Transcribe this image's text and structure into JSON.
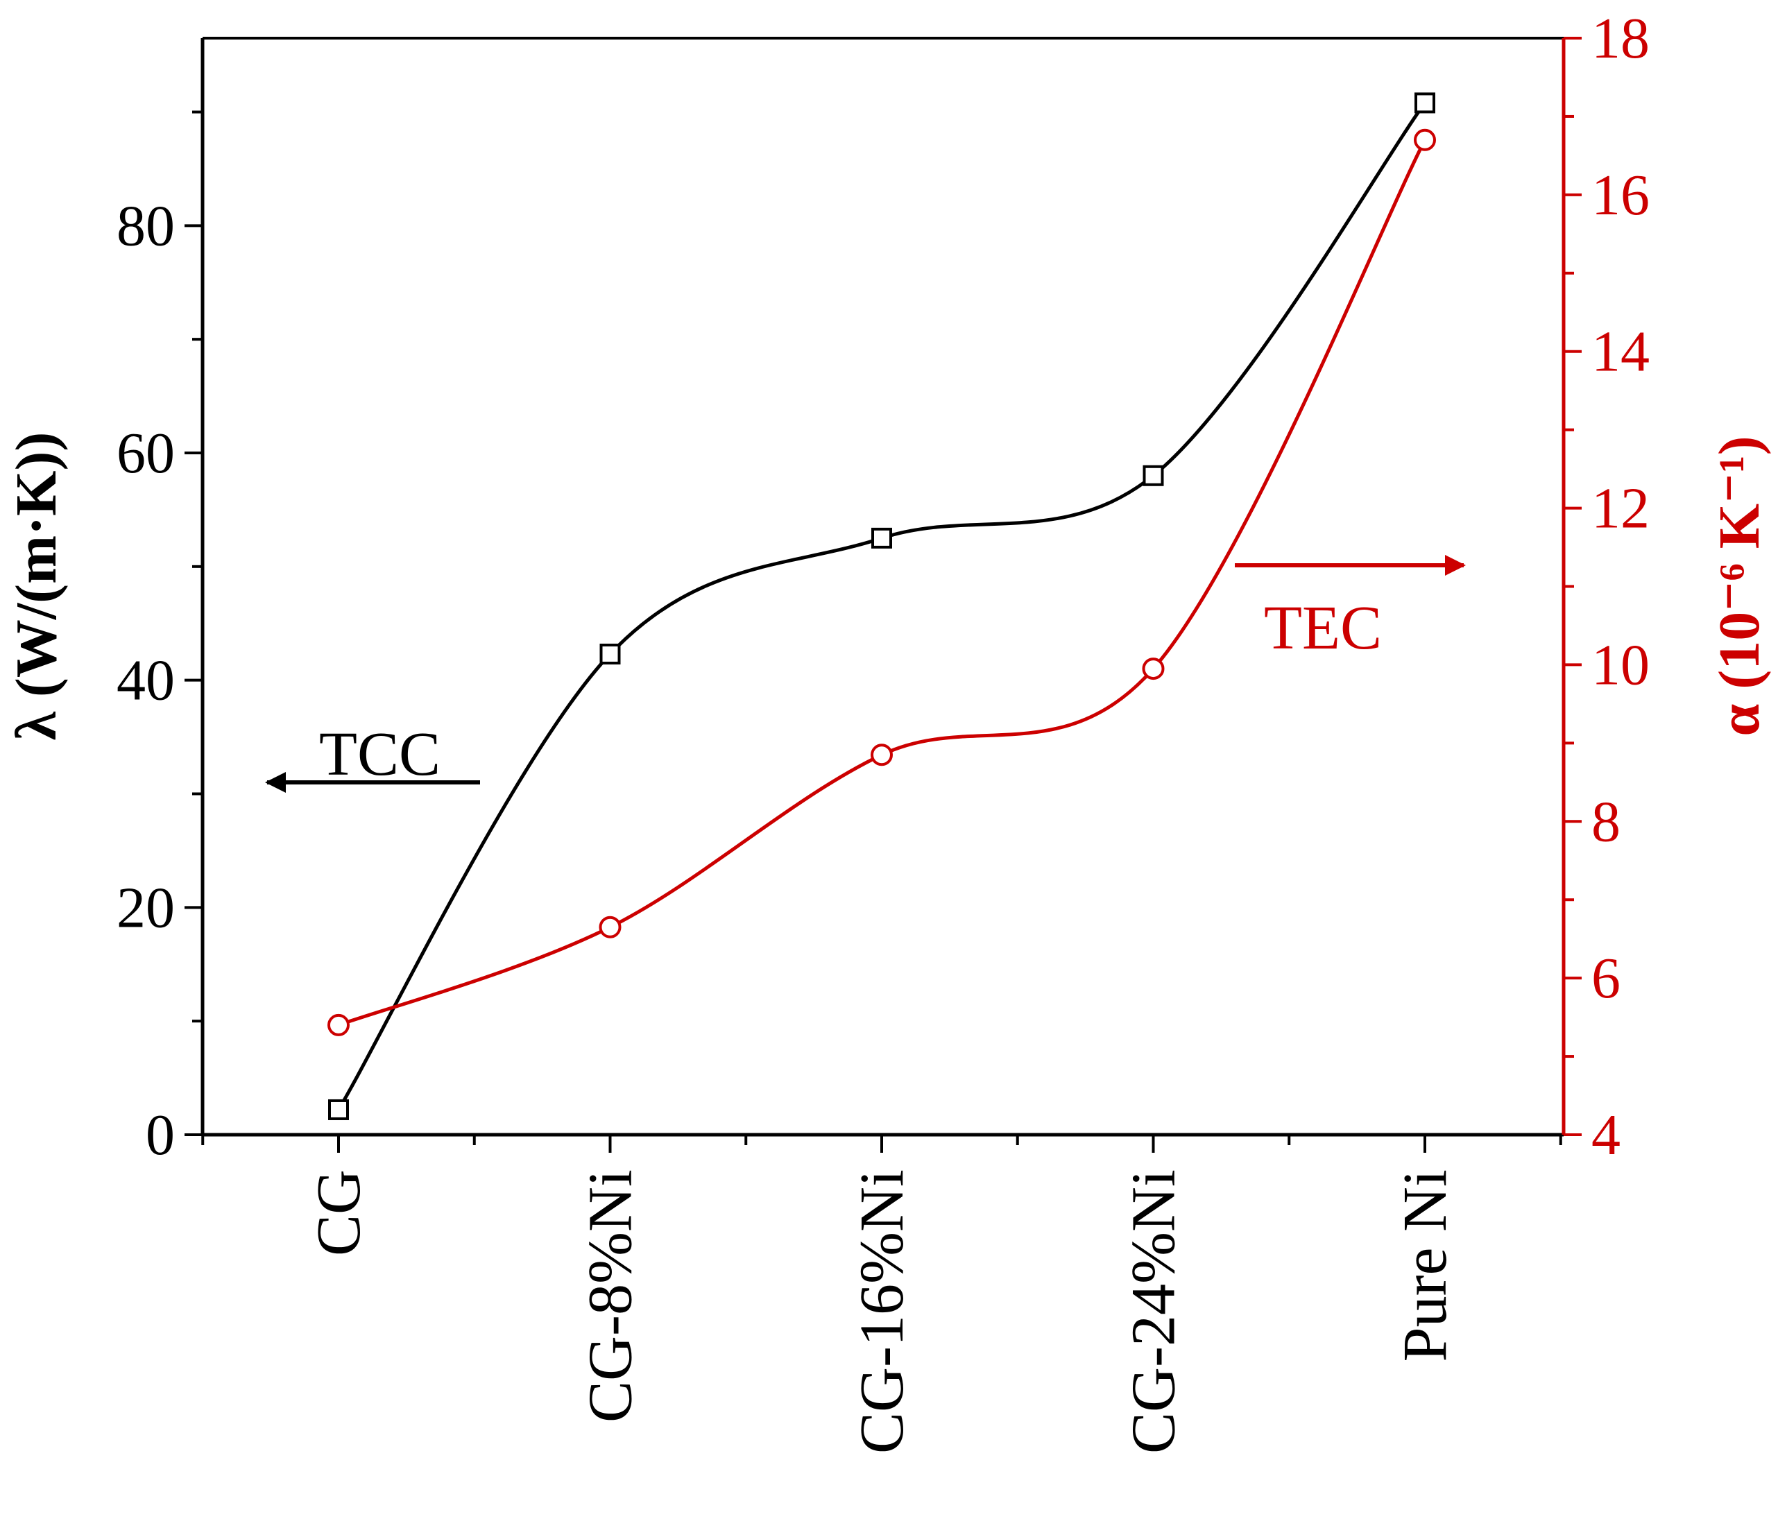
{
  "chart_data": {
    "type": "line",
    "title": "",
    "categories": [
      "CG",
      "CG-8%Ni",
      "CG-16%Ni",
      "CG-24%Ni",
      "Pure Ni"
    ],
    "series": [
      {
        "name": "TCC",
        "axis": "left",
        "color": "#000000",
        "marker": "square",
        "values": [
          2.2,
          42.3,
          52.5,
          58.0,
          90.8
        ]
      },
      {
        "name": "TEC",
        "axis": "right",
        "color": "#cc0000",
        "marker": "circle",
        "values": [
          5.4,
          6.65,
          8.85,
          9.95,
          16.7
        ]
      }
    ],
    "y_left": {
      "label": "λ (W/(m·K))",
      "lim": [
        0,
        96.5
      ],
      "ticks": [
        "0",
        "20",
        "40",
        "60",
        "80"
      ],
      "tick_values": [
        0,
        20,
        40,
        60,
        80
      ],
      "minor_step": 10
    },
    "y_right": {
      "label": "α (10⁻⁶ K⁻¹)",
      "lim": [
        4,
        18
      ],
      "ticks": [
        "4",
        "6",
        "8",
        "10",
        "12",
        "14",
        "16",
        "18"
      ],
      "tick_values": [
        4,
        6,
        8,
        10,
        12,
        14,
        16,
        18
      ],
      "minor_step": 1,
      "color": "#cc0000"
    },
    "annotations": [
      {
        "text": "TCC",
        "arrow": "left",
        "series": "TCC"
      },
      {
        "text": "TEC",
        "arrow": "right",
        "series": "TEC"
      }
    ]
  }
}
